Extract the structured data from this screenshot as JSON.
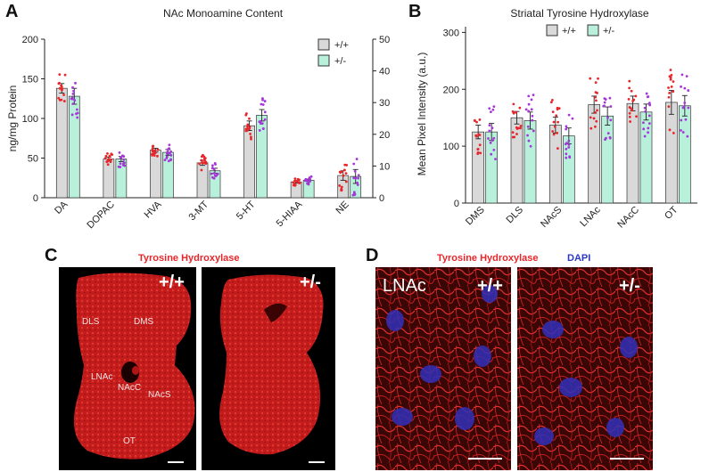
{
  "panels": {
    "A": {
      "letter": "A",
      "title": "NAc Monoamine Content",
      "ylabel": "ng/mg Protein",
      "left_ticks": [
        "0",
        "50",
        "100",
        "150",
        "200"
      ],
      "right_ticks": [
        "0",
        "10",
        "20",
        "30",
        "40",
        "50"
      ],
      "legend": [
        "+/+",
        "+/-"
      ]
    },
    "B": {
      "letter": "B",
      "title": "Striatal Tyrosine Hydroxylase",
      "ylabel": "Mean Pixel Intensity (a.u.)",
      "ticks": [
        "0",
        "100",
        "200",
        "300"
      ],
      "legend": [
        "+/+",
        "+/-"
      ]
    },
    "C": {
      "letter": "C",
      "stain": "Tyrosine Hydroxylase",
      "genotypes": [
        "+/+",
        "+/-"
      ],
      "regions": [
        "DLS",
        "DMS",
        "LNAc",
        "NAcC",
        "NAcS",
        "OT"
      ]
    },
    "D": {
      "letter": "D",
      "stain1": "Tyrosine Hydroxylase",
      "stain2": "DAPI",
      "region": "LNAc",
      "genotypes": [
        "+/+",
        "+/-"
      ]
    }
  },
  "colors": {
    "wt": "#d9d9d9",
    "het": "#b9f0dc",
    "wt_dots": "#e8262a",
    "het_dots": "#a536d8"
  },
  "chart_data": [
    {
      "type": "bar",
      "title": "NAc Monoamine Content",
      "ylabel": "ng/mg Protein",
      "ylim": [
        0,
        200
      ],
      "y2lim": [
        0,
        50
      ],
      "categories": [
        "DA",
        "DOPAC",
        "HVA",
        "3-MT",
        "5-HT",
        "5-HIAA",
        "NE"
      ],
      "axis_per_category": [
        "left",
        "right",
        "right",
        "right",
        "right",
        "right",
        "right"
      ],
      "series": [
        {
          "name": "+/+",
          "values": [
            138,
            12.2,
            15.0,
            11.0,
            22.7,
            5.0,
            7.0
          ],
          "errors": [
            6,
            0.6,
            0.6,
            0.8,
            1.5,
            0.4,
            1.5
          ]
        },
        {
          "name": "+/-",
          "values": [
            128,
            12.2,
            14.3,
            8.5,
            26.0,
            5.5,
            6.7
          ],
          "errors": [
            10,
            0.8,
            0.9,
            0.8,
            1.8,
            0.4,
            2.2
          ]
        }
      ],
      "legend": [
        "+/+",
        "+/-"
      ]
    },
    {
      "type": "bar",
      "title": "Striatal Tyrosine Hydroxylase",
      "ylabel": "Mean Pixel Intensity (a.u.)",
      "ylim": [
        0,
        310
      ],
      "categories": [
        "DMS",
        "DLS",
        "NAcS",
        "LNAc",
        "NAcC",
        "OT"
      ],
      "series": [
        {
          "name": "+/+",
          "values": [
            125,
            150,
            137,
            173,
            175,
            177
          ],
          "errors": [
            12,
            11,
            14,
            15,
            13,
            21
          ]
        },
        {
          "name": "+/-",
          "values": [
            125,
            145,
            118,
            153,
            160,
            171
          ],
          "errors": [
            15,
            15,
            14,
            16,
            14,
            18
          ]
        }
      ],
      "legend": [
        "+/+",
        "+/-"
      ]
    }
  ]
}
